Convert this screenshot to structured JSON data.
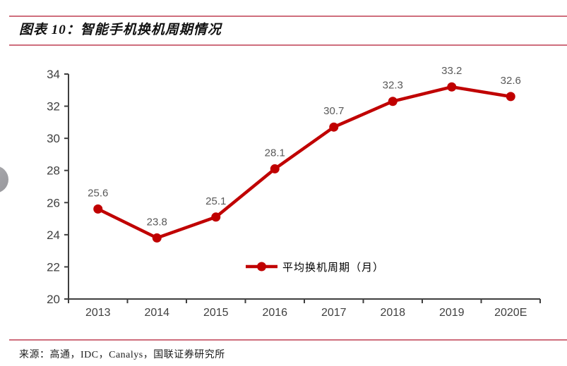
{
  "page": {
    "title": "图表 10：智能手机换机周期情况",
    "source": "来源：高通，IDC，Canalys，国联证券研究所"
  },
  "chart_data": {
    "type": "line",
    "title": "图表 10：智能手机换机周期情况",
    "categories": [
      "2013",
      "2014",
      "2015",
      "2016",
      "2017",
      "2018",
      "2019",
      "2020E"
    ],
    "series": [
      {
        "name": "平均换机周期（月）",
        "values": [
          25.6,
          23.8,
          25.1,
          28.1,
          30.7,
          32.3,
          33.2,
          32.6
        ]
      }
    ],
    "data_labels": [
      "25.6",
      "23.8",
      "25.1",
      "28.1",
      "30.7",
      "32.3",
      "33.2",
      "32.6"
    ],
    "xlabel": "",
    "ylabel": "",
    "ylim": [
      20,
      34
    ],
    "yticks": [
      20,
      22,
      24,
      26,
      28,
      30,
      32,
      34
    ],
    "grid": false,
    "legend_position": "inside-bottom-center",
    "colors": {
      "line": "#c00000",
      "marker": "#c00000",
      "data_label": "#595959",
      "axis": "#3f3f3f",
      "tick_label": "#404040",
      "legend_text": "#000000",
      "rule": "#cf6e7d"
    }
  }
}
